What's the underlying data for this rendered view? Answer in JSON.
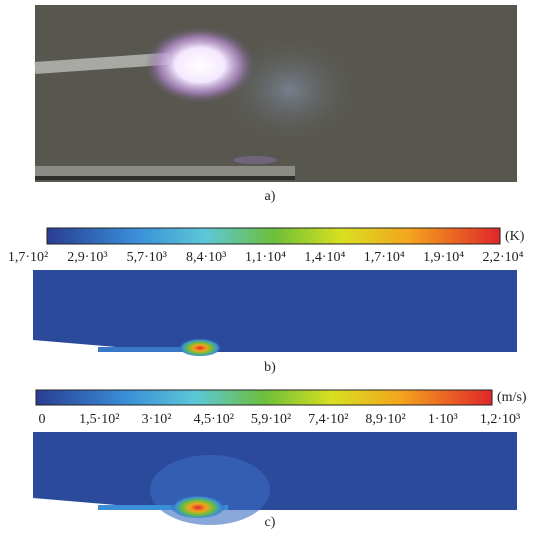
{
  "panels": [
    {
      "label": "a)"
    },
    {
      "label": "b)",
      "colorbar": {
        "unit": "(K)",
        "ticks": [
          "1,7·10²",
          "2,9·10³",
          "5,7·10³",
          "8,4·10³",
          "1,1·10⁴",
          "1,4·10⁴",
          "1,7·10⁴",
          "1,9·10⁴",
          "2,2·10⁴"
        ]
      }
    },
    {
      "label": "c)",
      "colorbar": {
        "unit": "(m/s)",
        "ticks": [
          "0",
          "1,5·10²",
          "3·10²",
          "4,5·10²",
          "5,9·10²",
          "7,4·10²",
          "8,9·10²",
          "1·10³",
          "1,2·10³"
        ]
      }
    }
  ]
}
